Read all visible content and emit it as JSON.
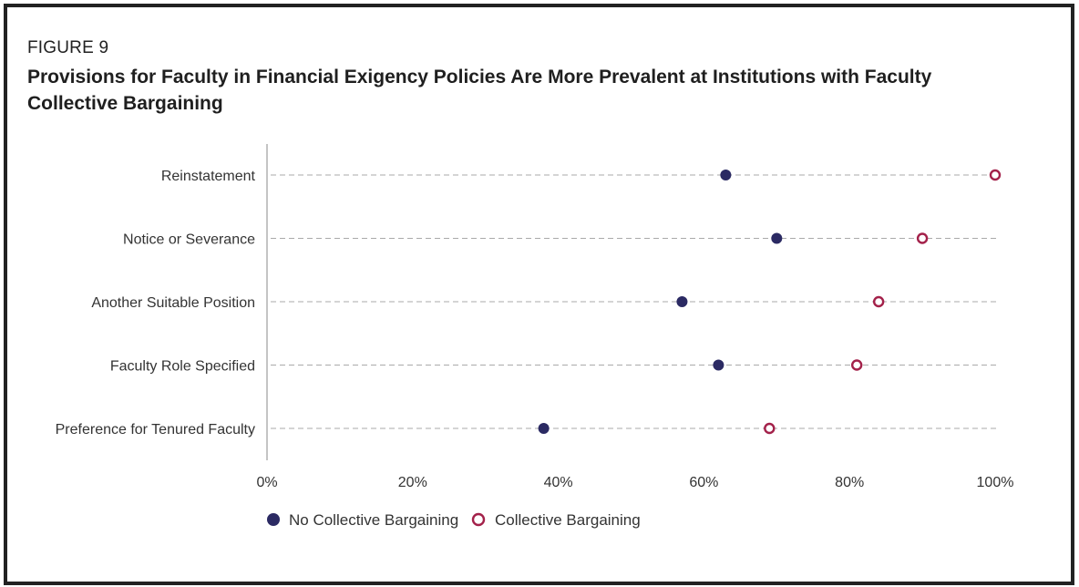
{
  "figure_label": "FIGURE 9",
  "title": "Provisions for Faculty in Financial Exigency Policies Are More Prevalent at Institutions with Faculty Collective Bargaining",
  "colors": {
    "no_cb": "#2b2a63",
    "cb": "#a3214a",
    "gridline": "#aaaaaa",
    "axis": "#888888"
  },
  "chart_data": {
    "type": "scatter",
    "title": "Provisions for Faculty in Financial Exigency Policies Are More Prevalent at Institutions with Faculty Collective Bargaining",
    "categories": [
      "Reinstatement",
      "Notice or Severance",
      "Another Suitable Position",
      "Faculty Role Specified",
      "Preference for Tenured Faculty"
    ],
    "series": [
      {
        "name": "No Collective Bargaining",
        "marker": "filled-circle",
        "values": [
          63,
          70,
          57,
          62,
          38
        ]
      },
      {
        "name": "Collective Bargaining",
        "marker": "open-circle",
        "values": [
          100,
          90,
          84,
          81,
          69
        ]
      }
    ],
    "xlim": [
      0,
      100
    ],
    "xticks": [
      "0%",
      "20%",
      "40%",
      "60%",
      "80%",
      "100%"
    ],
    "grid": "dashed horizontal",
    "legend_position": "bottom-left"
  }
}
